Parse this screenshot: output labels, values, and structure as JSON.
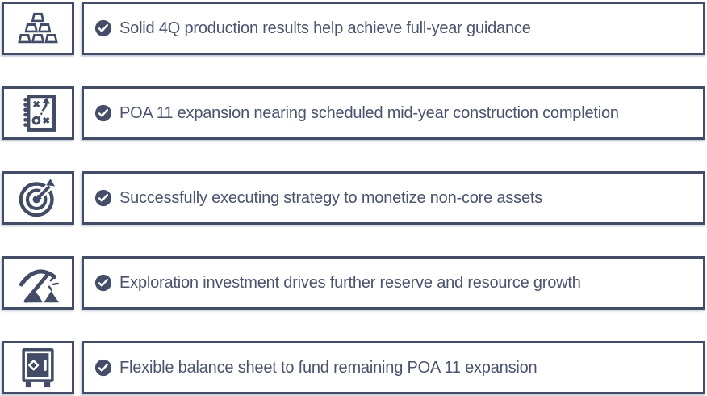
{
  "theme": {
    "border_color": "#434c66",
    "icon_color": "#434c66",
    "text_color": "#4b536f",
    "check_fill": "#454e69",
    "check_mark_color": "#ffffff",
    "background": "#ffffff"
  },
  "rows": [
    {
      "icon": "gold-bars-icon",
      "text": "Solid 4Q production results help achieve full-year guidance"
    },
    {
      "icon": "strategy-playbook-icon",
      "text": "POA 11 expansion nearing scheduled mid-year construction completion"
    },
    {
      "icon": "target-arrow-icon",
      "text": "Successfully executing strategy to monetize non-core assets"
    },
    {
      "icon": "pickaxe-mining-icon",
      "text": "Exploration investment drives further reserve and resource growth"
    },
    {
      "icon": "safe-vault-icon",
      "text": "Flexible balance sheet to fund remaining POA 11 expansion"
    }
  ]
}
